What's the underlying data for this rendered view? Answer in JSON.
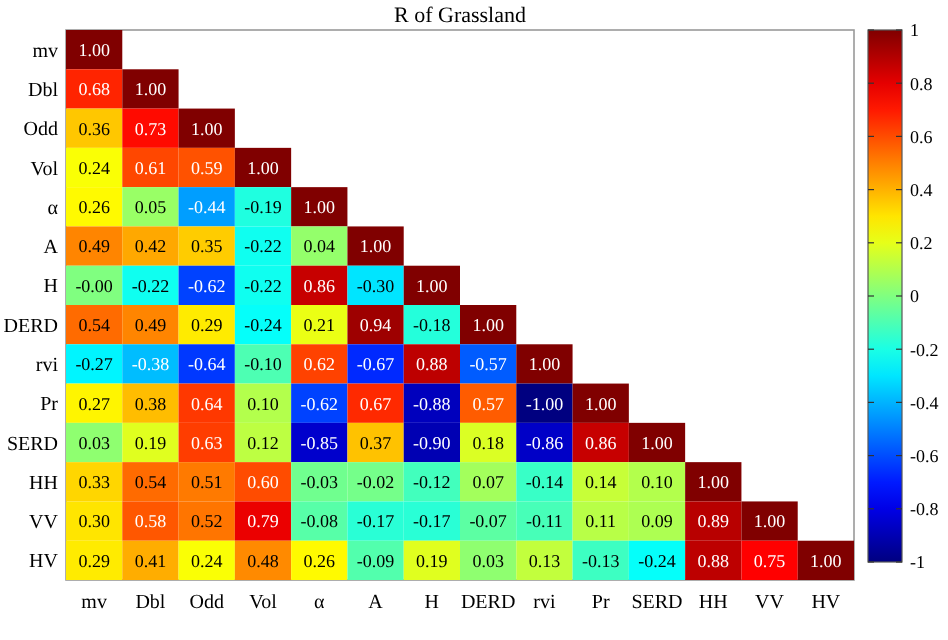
{
  "chart_data": {
    "type": "heatmap",
    "title": "R of Grassland",
    "categories": [
      "mv",
      "Dbl",
      "Odd",
      "Vol",
      "α",
      "A",
      "H",
      "DERD",
      "rvi",
      "Pr",
      "SERD",
      "HH",
      "VV",
      "HV"
    ],
    "y_categories": [
      "mv",
      "Dbl",
      "Odd",
      "Vol",
      "α",
      "A",
      "H",
      "DERD",
      "rvi",
      "Pr",
      "SERD",
      "HH",
      "VV",
      "HV"
    ],
    "cells": [
      [
        1.0,
        null,
        null,
        null,
        null,
        null,
        null,
        null,
        null,
        null,
        null,
        null,
        null,
        null
      ],
      [
        0.68,
        1.0,
        null,
        null,
        null,
        null,
        null,
        null,
        null,
        null,
        null,
        null,
        null,
        null
      ],
      [
        0.36,
        0.73,
        1.0,
        null,
        null,
        null,
        null,
        null,
        null,
        null,
        null,
        null,
        null,
        null
      ],
      [
        0.24,
        0.61,
        0.59,
        1.0,
        null,
        null,
        null,
        null,
        null,
        null,
        null,
        null,
        null,
        null
      ],
      [
        0.26,
        0.05,
        -0.44,
        -0.19,
        1.0,
        null,
        null,
        null,
        null,
        null,
        null,
        null,
        null,
        null
      ],
      [
        0.49,
        0.42,
        0.35,
        -0.22,
        0.04,
        1.0,
        null,
        null,
        null,
        null,
        null,
        null,
        null,
        null
      ],
      [
        0,
        -0.22,
        -0.62,
        -0.22,
        0.86,
        -0.3,
        1.0,
        null,
        null,
        null,
        null,
        null,
        null,
        null
      ],
      [
        0.54,
        0.49,
        0.29,
        -0.24,
        0.21,
        0.94,
        -0.18,
        1.0,
        null,
        null,
        null,
        null,
        null,
        null
      ],
      [
        -0.27,
        -0.38,
        -0.64,
        -0.1,
        0.62,
        -0.67,
        0.88,
        -0.57,
        1.0,
        null,
        null,
        null,
        null,
        null
      ],
      [
        0.27,
        0.38,
        0.64,
        0.1,
        -0.62,
        0.67,
        -0.88,
        0.57,
        -1.0,
        1.0,
        null,
        null,
        null,
        null
      ],
      [
        0.03,
        0.19,
        0.63,
        0.12,
        -0.85,
        0.37,
        -0.9,
        0.18,
        -0.86,
        0.86,
        1.0,
        null,
        null,
        null
      ],
      [
        0.33,
        0.54,
        0.51,
        0.6,
        -0.03,
        -0.02,
        -0.12,
        0.07,
        -0.14,
        0.14,
        0.1,
        1.0,
        null,
        null
      ],
      [
        0.3,
        0.58,
        0.52,
        0.79,
        -0.08,
        -0.17,
        -0.17,
        -0.07,
        -0.11,
        0.11,
        0.09,
        0.89,
        1.0,
        null
      ],
      [
        0.29,
        0.41,
        0.24,
        0.48,
        0.26,
        -0.09,
        0.19,
        0.03,
        0.13,
        -0.13,
        -0.24,
        0.88,
        0.75,
        1.0
      ]
    ],
    "cell_labels": [
      [
        "1.00",
        null,
        null,
        null,
        null,
        null,
        null,
        null,
        null,
        null,
        null,
        null,
        null,
        null
      ],
      [
        "0.68",
        "1.00",
        null,
        null,
        null,
        null,
        null,
        null,
        null,
        null,
        null,
        null,
        null,
        null
      ],
      [
        "0.36",
        "0.73",
        "1.00",
        null,
        null,
        null,
        null,
        null,
        null,
        null,
        null,
        null,
        null,
        null
      ],
      [
        "0.24",
        "0.61",
        "0.59",
        "1.00",
        null,
        null,
        null,
        null,
        null,
        null,
        null,
        null,
        null,
        null
      ],
      [
        "0.26",
        "0.05",
        "-0.44",
        "-0.19",
        "1.00",
        null,
        null,
        null,
        null,
        null,
        null,
        null,
        null,
        null
      ],
      [
        "0.49",
        "0.42",
        "0.35",
        "-0.22",
        "0.04",
        "1.00",
        null,
        null,
        null,
        null,
        null,
        null,
        null,
        null
      ],
      [
        "-0.00",
        "-0.22",
        "-0.62",
        "-0.22",
        "0.86",
        "-0.30",
        "1.00",
        null,
        null,
        null,
        null,
        null,
        null,
        null
      ],
      [
        "0.54",
        "0.49",
        "0.29",
        "-0.24",
        "0.21",
        "0.94",
        "-0.18",
        "1.00",
        null,
        null,
        null,
        null,
        null,
        null
      ],
      [
        "-0.27",
        "-0.38",
        "-0.64",
        "-0.10",
        "0.62",
        "-0.67",
        "0.88",
        "-0.57",
        "1.00",
        null,
        null,
        null,
        null,
        null
      ],
      [
        "0.27",
        "0.38",
        "0.64",
        "0.10",
        "-0.62",
        "0.67",
        "-0.88",
        "0.57",
        "-1.00",
        "1.00",
        null,
        null,
        null,
        null
      ],
      [
        "0.03",
        "0.19",
        "0.63",
        "0.12",
        "-0.85",
        "0.37",
        "-0.90",
        "0.18",
        "-0.86",
        "0.86",
        "1.00",
        null,
        null,
        null
      ],
      [
        "0.33",
        "0.54",
        "0.51",
        "0.60",
        "-0.03",
        "-0.02",
        "-0.12",
        "0.07",
        "-0.14",
        "0.14",
        "0.10",
        "1.00",
        null,
        null
      ],
      [
        "0.30",
        "0.58",
        "0.52",
        "0.79",
        "-0.08",
        "-0.17",
        "-0.17",
        "-0.07",
        "-0.11",
        "0.11",
        "0.09",
        "0.89",
        "1.00",
        null
      ],
      [
        "0.29",
        "0.41",
        "0.24",
        "0.48",
        "0.26",
        "-0.09",
        "0.19",
        "0.03",
        "0.13",
        "-0.13",
        "-0.24",
        "0.88",
        "0.75",
        "1.00"
      ]
    ],
    "clim": [
      -1,
      1
    ],
    "cticks": [
      -1,
      -0.8,
      -0.6,
      -0.4,
      -0.2,
      0,
      0.2,
      0.4,
      0.6,
      0.8,
      1
    ]
  }
}
